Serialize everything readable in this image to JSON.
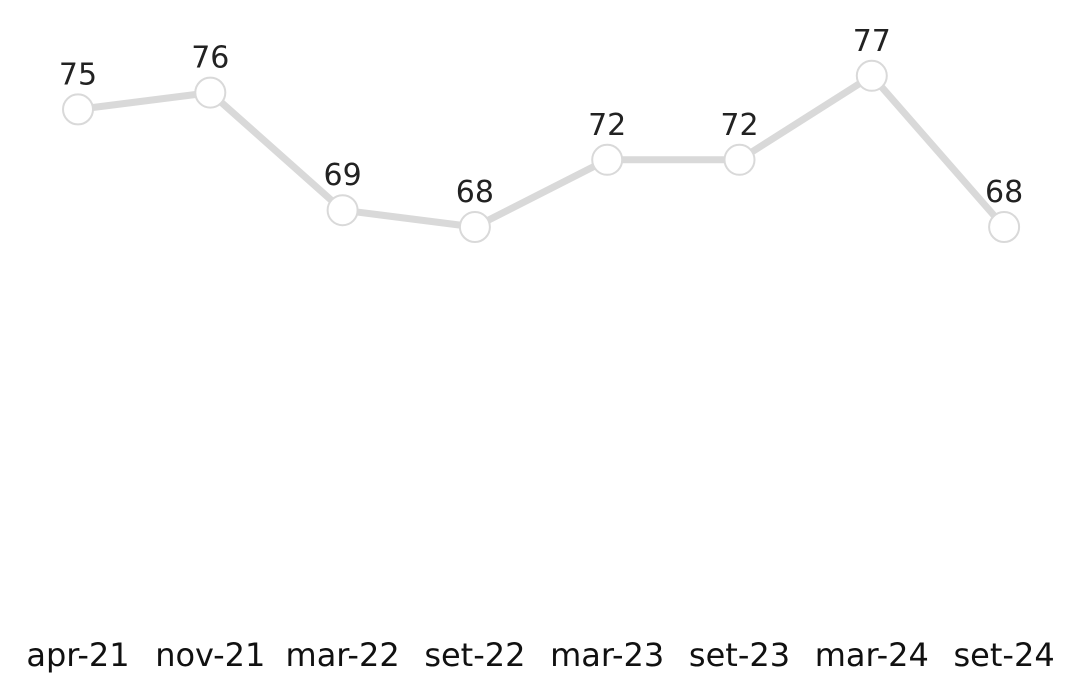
{
  "chart_data": {
    "type": "line",
    "categories": [
      "apr-21",
      "nov-21",
      "mar-22",
      "set-22",
      "mar-23",
      "set-23",
      "mar-24",
      "set-24"
    ],
    "series": [
      {
        "values": [
          75,
          76,
          69,
          68,
          72,
          72,
          77,
          68
        ],
        "color": "#d9d9d9",
        "marker": "open-circle"
      }
    ],
    "data_labels": true,
    "grid": false,
    "legend": "none",
    "title": "",
    "xlabel": "",
    "ylabel": ""
  }
}
